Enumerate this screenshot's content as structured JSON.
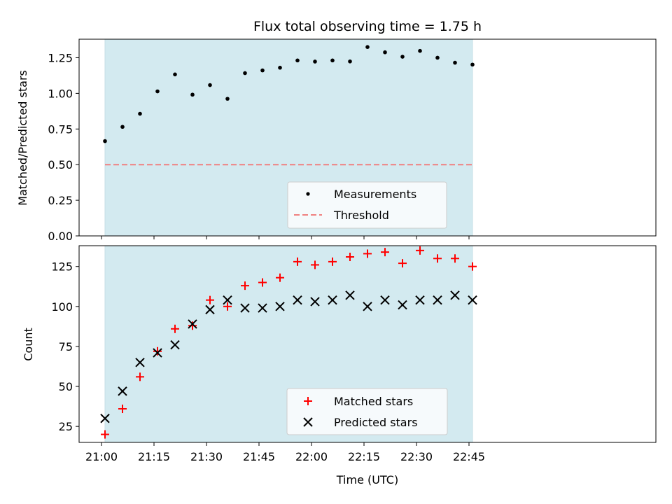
{
  "chart_data": [
    {
      "type": "scatter",
      "title": "Flux total observing time = 1.75 h",
      "xlabel": "",
      "ylabel": "Matched/Predicted stars",
      "ylim": [
        0.0,
        1.38
      ],
      "yticks": [
        "0.00",
        "0.25",
        "0.50",
        "0.75",
        "1.00",
        "1.25"
      ],
      "legend_position": "lower-center",
      "grid": false,
      "colors": {
        "shade": "#d3eaf0",
        "points": "#000000",
        "threshold": "#f08080"
      },
      "x": [
        "21:01",
        "21:06",
        "21:11",
        "21:16",
        "21:21",
        "21:26",
        "21:31",
        "21:36",
        "21:41",
        "21:46",
        "21:51",
        "21:56",
        "22:01",
        "22:06",
        "22:11",
        "22:16",
        "22:21",
        "22:26",
        "22:31",
        "22:36",
        "22:41",
        "22:46"
      ],
      "series": [
        {
          "name": "Measurements",
          "marker": "dot",
          "values": [
            0.665,
            0.765,
            0.857,
            1.014,
            1.133,
            0.991,
            1.058,
            0.962,
            1.142,
            1.161,
            1.18,
            1.231,
            1.223,
            1.231,
            1.224,
            1.325,
            1.288,
            1.257,
            1.298,
            1.25,
            1.215,
            1.202
          ]
        },
        {
          "name": "Threshold",
          "marker": "dashed-line",
          "values": [
            0.5
          ]
        }
      ]
    },
    {
      "type": "scatter",
      "title": "",
      "xlabel": "Time (UTC)",
      "ylabel": "Count",
      "ylim": [
        15,
        138
      ],
      "yticks": [
        "25",
        "50",
        "75",
        "100",
        "125"
      ],
      "xticks": [
        "21:00",
        "21:15",
        "21:30",
        "21:45",
        "22:00",
        "22:15",
        "22:30",
        "22:45"
      ],
      "legend_position": "lower-center",
      "grid": false,
      "colors": {
        "shade": "#d3eaf0",
        "matched": "#ff0000",
        "predicted": "#000000"
      },
      "x": [
        "21:01",
        "21:06",
        "21:11",
        "21:16",
        "21:21",
        "21:26",
        "21:31",
        "21:36",
        "21:41",
        "21:46",
        "21:51",
        "21:56",
        "22:01",
        "22:06",
        "22:11",
        "22:16",
        "22:21",
        "22:26",
        "22:31",
        "22:36",
        "22:41",
        "22:46"
      ],
      "series": [
        {
          "name": "Matched stars",
          "marker": "plus",
          "values": [
            20,
            36,
            56,
            72,
            86,
            88,
            104,
            100,
            113,
            115,
            118,
            128,
            126,
            128,
            131,
            133,
            134,
            127,
            135,
            130,
            130,
            125
          ]
        },
        {
          "name": "Predicted stars",
          "marker": "x",
          "values": [
            30,
            47,
            65,
            71,
            76,
            89,
            98,
            104,
            99,
            99,
            100,
            104,
            103,
            104,
            107,
            100,
            104,
            101,
            104,
            104,
            107,
            104
          ]
        }
      ]
    }
  ]
}
